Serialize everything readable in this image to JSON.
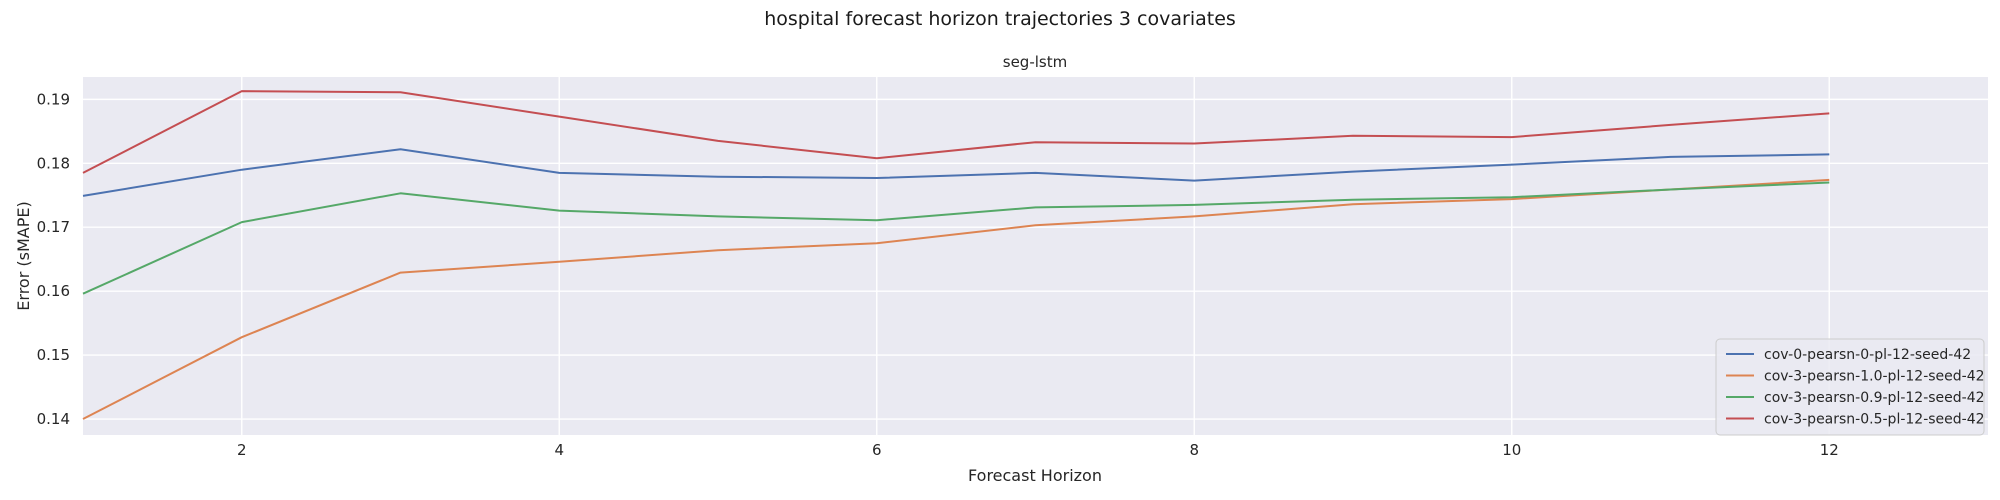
{
  "figure": {
    "suptitle": "hospital forecast horizon trajectories 3 covariates"
  },
  "chart_data": {
    "type": "line",
    "title": "seg-lstm",
    "xlabel": "Forecast Horizon",
    "ylabel": "Error (sMAPE)",
    "xlim": [
      1,
      13
    ],
    "ylim": [
      0.1375,
      0.1935
    ],
    "xticks": [
      2,
      4,
      6,
      8,
      10,
      12
    ],
    "yticks": [
      0.14,
      0.15,
      0.16,
      0.17,
      0.18,
      0.19
    ],
    "ytick_labels": [
      "0.14",
      "0.15",
      "0.16",
      "0.17",
      "0.18",
      "0.19"
    ],
    "grid": true,
    "legend_position": "lower-right",
    "x": [
      1,
      2,
      3,
      4,
      5,
      6,
      7,
      8,
      9,
      10,
      11,
      12
    ],
    "series": [
      {
        "name": "cov-0-pearsn-0-pl-12-seed-42",
        "color": "#4c72b0",
        "values": [
          0.1749,
          0.179,
          0.1822,
          0.1785,
          0.1779,
          0.1777,
          0.1785,
          0.1773,
          0.1787,
          0.1798,
          0.181,
          0.1814
        ]
      },
      {
        "name": "cov-3-pearsn-1.0-pl-12-seed-42",
        "color": "#dd8452",
        "values": [
          0.14,
          0.1528,
          0.1629,
          0.1646,
          0.1664,
          0.1675,
          0.1703,
          0.1717,
          0.1736,
          0.1744,
          0.1759,
          0.1774
        ]
      },
      {
        "name": "cov-3-pearsn-0.9-pl-12-seed-42",
        "color": "#55a868",
        "values": [
          0.1596,
          0.1708,
          0.1753,
          0.1726,
          0.1717,
          0.1711,
          0.1731,
          0.1735,
          0.1743,
          0.1747,
          0.1759,
          0.177
        ]
      },
      {
        "name": "cov-3-pearsn-0.5-pl-12-seed-42",
        "color": "#c44e52",
        "values": [
          0.1785,
          0.1913,
          0.1911,
          0.1873,
          0.1835,
          0.1808,
          0.1833,
          0.1831,
          0.1843,
          0.1841,
          0.186,
          0.1878
        ]
      }
    ]
  }
}
